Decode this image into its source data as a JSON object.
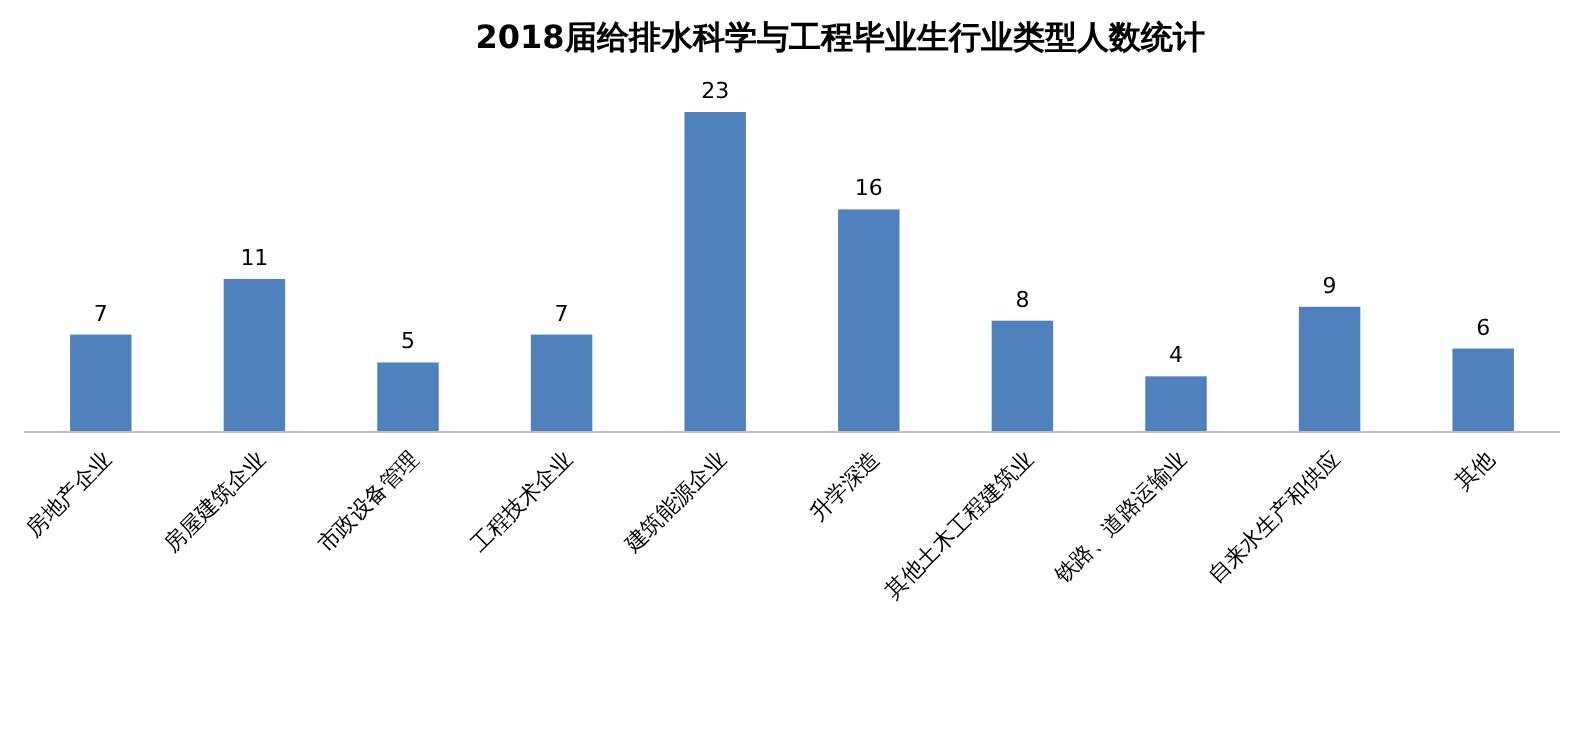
{
  "chart_data": {
    "type": "bar",
    "title": "2018届给排水科学与工程毕业生行业类型人数统计",
    "categories": [
      "房地产企业",
      "房屋建筑企业",
      "市政设备管理",
      "工程技术企业",
      "建筑能源企业",
      "升学深造",
      "其他土木工程建筑业",
      "铁路、道路运输业",
      "自来水生产和供应",
      "其他"
    ],
    "values": [
      7,
      11,
      5,
      7,
      23,
      16,
      8,
      4,
      9,
      6
    ],
    "color": "#4f81bd",
    "data_labels": true
  }
}
